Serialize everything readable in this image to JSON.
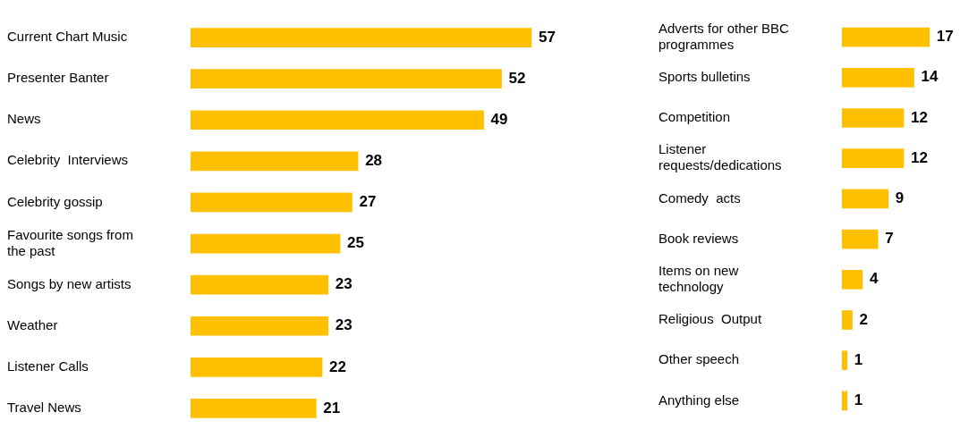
{
  "chart_data": [
    {
      "type": "bar",
      "orientation": "horizontal",
      "data_labels": true,
      "categories": [
        "Current Chart Music",
        "Presenter Banter",
        "News",
        "Celebrity  Interviews",
        "Celebrity gossip",
        "Favourite songs from the past",
        "Songs by new artists",
        "Weather",
        "Listener Calls",
        "Travel News"
      ],
      "values": [
        57,
        52,
        49,
        28,
        27,
        25,
        23,
        23,
        22,
        21
      ],
      "color": "#ffc000"
    },
    {
      "type": "bar",
      "orientation": "horizontal",
      "data_labels": true,
      "categories": [
        "Adverts for other BBC programmes",
        "Sports bulletins",
        "Competition",
        "Listener requests/dedications",
        "Comedy  acts",
        "Book reviews",
        "Items on new technology",
        "Religious  Output",
        "Other speech",
        "Anything else"
      ],
      "values": [
        17,
        14,
        12,
        12,
        9,
        7,
        4,
        2,
        1,
        1
      ],
      "color": "#ffc000"
    }
  ]
}
